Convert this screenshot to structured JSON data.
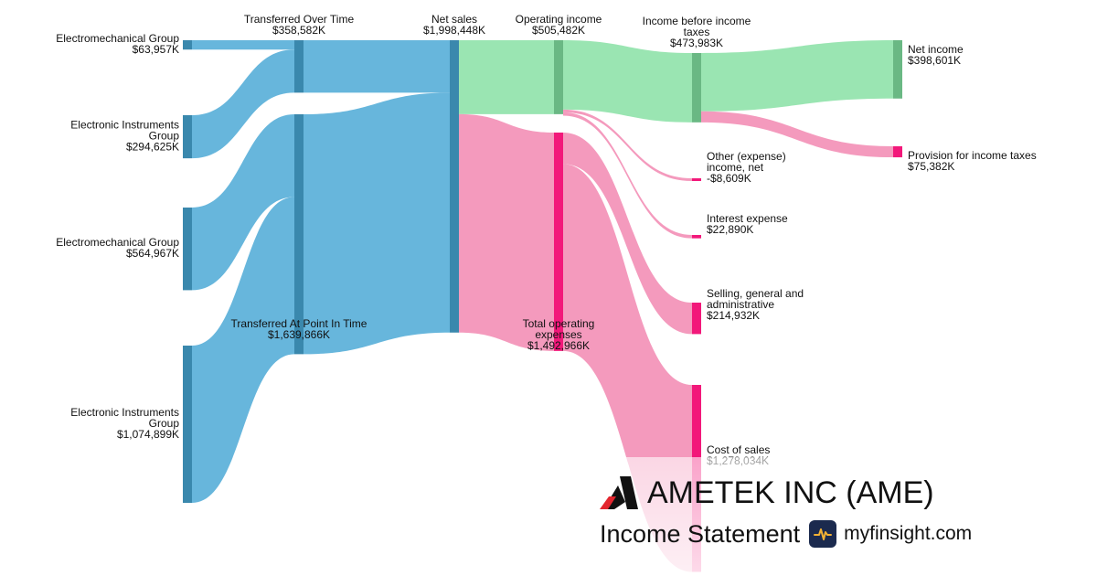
{
  "chart_data": {
    "type": "sankey",
    "units": "K",
    "nodes": [
      {
        "id": "em1",
        "name": "Electromechanical Group",
        "value_label": "$63,957K",
        "value": 63957
      },
      {
        "id": "ei1",
        "name": "Electronic Instruments Group",
        "value_label": "$294,625K",
        "value": 294625
      },
      {
        "id": "em2",
        "name": "Electromechanical Group",
        "value_label": "$564,967K",
        "value": 564967
      },
      {
        "id": "ei2",
        "name": "Electronic Instruments Group",
        "value_label": "$1,074,899K",
        "value": 1074899
      },
      {
        "id": "tot",
        "name": "Transferred Over Time",
        "value_label": "$358,582K",
        "value": 358582
      },
      {
        "id": "tpt",
        "name": "Transferred At Point In Time",
        "value_label": "$1,639,866K",
        "value": 1639866
      },
      {
        "id": "ns",
        "name": "Net sales",
        "value_label": "$1,998,448K",
        "value": 1998448
      },
      {
        "id": "oi",
        "name": "Operating income",
        "value_label": "$505,482K",
        "value": 505482
      },
      {
        "id": "toe",
        "name": "Total operating expenses",
        "value_label": "$1,492,966K",
        "value": 1492966
      },
      {
        "id": "ibt",
        "name": "Income before income taxes",
        "value_label": "$473,983K",
        "value": 473983
      },
      {
        "id": "oth",
        "name": "Other (expense) income, net",
        "value_label": "-$8,609K",
        "value": -8609
      },
      {
        "id": "int",
        "name": "Interest expense",
        "value_label": "$22,890K",
        "value": 22890
      },
      {
        "id": "sga",
        "name": "Selling, general and administrative",
        "value_label": "$214,932K",
        "value": 214932
      },
      {
        "id": "cos",
        "name": "Cost of sales",
        "value_label": "$1,278,034K",
        "value": 1278034
      },
      {
        "id": "ni",
        "name": "Net income",
        "value_label": "$398,601K",
        "value": 398601
      },
      {
        "id": "tax",
        "name": "Provision for income taxes",
        "value_label": "$75,382K",
        "value": 75382
      }
    ],
    "links": [
      {
        "source": "em1",
        "target": "tot",
        "value": 63957
      },
      {
        "source": "ei1",
        "target": "tot",
        "value": 294625
      },
      {
        "source": "em2",
        "target": "tpt",
        "value": 564967
      },
      {
        "source": "ei2",
        "target": "tpt",
        "value": 1074899
      },
      {
        "source": "tot",
        "target": "ns",
        "value": 358582
      },
      {
        "source": "tpt",
        "target": "ns",
        "value": 1639866
      },
      {
        "source": "ns",
        "target": "oi",
        "value": 505482
      },
      {
        "source": "ns",
        "target": "toe",
        "value": 1492966
      },
      {
        "source": "oi",
        "target": "ibt",
        "value": 473983
      },
      {
        "source": "oi",
        "target": "oth",
        "value": 8609
      },
      {
        "source": "oi",
        "target": "int",
        "value": 22890
      },
      {
        "source": "toe",
        "target": "sga",
        "value": 214932
      },
      {
        "source": "toe",
        "target": "cos",
        "value": 1278034
      },
      {
        "source": "ibt",
        "target": "ni",
        "value": 398601
      },
      {
        "source": "ibt",
        "target": "tax",
        "value": 75382
      }
    ],
    "colors": {
      "revenue_link": "#67b6dc",
      "revenue_node": "#3a88ad",
      "profit_link": "#9ae5b2",
      "profit_node": "#6ab884",
      "expense_link": "#f49abd",
      "expense_node": "#f2187a"
    }
  },
  "brand": {
    "company": "AMETEK INC (AME)",
    "statement": "Income Statement",
    "site": "myfinsight.com",
    "logo_icon": "ametek-logo-icon",
    "site_icon": "pulse-icon"
  }
}
